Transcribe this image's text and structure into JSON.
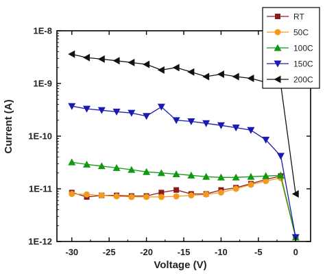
{
  "chart_data": {
    "type": "line",
    "title": "",
    "xlabel": "Voltage (V)",
    "ylabel": "Current (A)",
    "xlim": [
      -32,
      2
    ],
    "ylim": [
      1e-12,
      1e-08
    ],
    "yscale": "log",
    "x_ticks": [
      -30,
      -25,
      -20,
      -15,
      -10,
      -5,
      0
    ],
    "x_tick_labels": [
      "-30",
      "-25",
      "-20",
      "-15",
      "-10",
      "-5",
      "0"
    ],
    "y_ticks": [
      1e-12,
      1e-11,
      1e-10,
      1e-09,
      1e-08
    ],
    "y_tick_labels": [
      "1E-12",
      "1E-11",
      "1E-10",
      "1E-9",
      "1E-8"
    ],
    "grid": false,
    "legend_position": "top-right",
    "x": [
      -30,
      -28,
      -26,
      -24,
      -22,
      -20,
      -18,
      -16,
      -14,
      -12,
      -10,
      -8,
      -6,
      -4,
      -2,
      0
    ],
    "series": [
      {
        "name": "RT",
        "color": "#8b1a1a",
        "marker": "square",
        "values": [
          8.5e-12,
          7e-12,
          7.5e-12,
          7.5e-12,
          7.3e-12,
          7.3e-12,
          8.5e-12,
          9.5e-12,
          8e-12,
          8e-12,
          9.5e-12,
          1.05e-11,
          1.25e-11,
          1.5e-11,
          1.75e-11,
          1.2e-12
        ]
      },
      {
        "name": "50C",
        "color": "#f39a1e",
        "marker": "circle",
        "values": [
          8e-12,
          7.8e-12,
          7.5e-12,
          7.2e-12,
          7e-12,
          7e-12,
          7e-12,
          7.2e-12,
          7.5e-12,
          7.8e-12,
          8.5e-12,
          1e-11,
          1.2e-11,
          1.4e-11,
          1.6e-11,
          1.2e-12
        ]
      },
      {
        "name": "100C",
        "color": "#119911",
        "marker": "triangle-up",
        "values": [
          3.2e-11,
          2.9e-11,
          2.7e-11,
          2.5e-11,
          2.3e-11,
          2.1e-11,
          2e-11,
          1.9e-11,
          1.8e-11,
          1.7e-11,
          1.65e-11,
          1.65e-11,
          1.7e-11,
          1.75e-11,
          1.8e-11,
          1.2e-12
        ]
      },
      {
        "name": "150C",
        "color": "#1a1ab0",
        "marker": "triangle-down",
        "values": [
          3.7e-10,
          3.3e-10,
          3.1e-10,
          2.9e-10,
          2.75e-10,
          2.4e-10,
          3.6e-10,
          2e-10,
          1.9e-10,
          1.75e-10,
          1.6e-10,
          1.45e-10,
          1.3e-10,
          8.5e-11,
          4.2e-11,
          1.2e-12
        ]
      },
      {
        "name": "200C",
        "color": "#111111",
        "marker": "triangle-left",
        "values": [
          3.6e-09,
          3.1e-09,
          2.9e-09,
          2.7e-09,
          2.5e-09,
          2.3e-09,
          1.8e-09,
          2e-09,
          1.65e-09,
          1.35e-09,
          1.5e-09,
          1.35e-09,
          1.25e-09,
          1.05e-09,
          9.5e-10,
          8e-12
        ]
      }
    ]
  }
}
